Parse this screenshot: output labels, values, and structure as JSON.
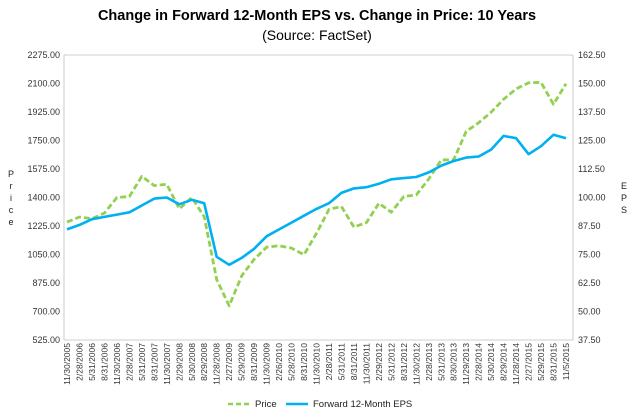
{
  "chart_data": {
    "type": "line",
    "title": "Change in Forward 12-Month EPS vs. Change in Price: 10 Years",
    "subtitle": "(Source: FactSet)",
    "ylabel_left": "Price",
    "ylabel_right": "EPS",
    "y_left": {
      "min": 525,
      "max": 2275,
      "ticks": [
        "525.00",
        "700.00",
        "875.00",
        "1050.00",
        "1225.00",
        "1400.00",
        "1575.00",
        "1750.00",
        "1925.00",
        "2100.00",
        "2275.00"
      ]
    },
    "y_right": {
      "min": 37.5,
      "max": 162.5,
      "ticks": [
        "37.50",
        "50.00",
        "62.50",
        "75.00",
        "87.50",
        "100.00",
        "112.50",
        "125.00",
        "137.50",
        "150.00",
        "162.50"
      ]
    },
    "x_labels": [
      "11/30/2005",
      "2/28/2006",
      "5/31/2006",
      "8/31/2006",
      "11/30/2006",
      "2/28/2007",
      "5/31/2007",
      "8/31/2007",
      "11/30/2007",
      "2/29/2008",
      "5/30/2008",
      "8/29/2008",
      "11/28/2008",
      "2/27/2009",
      "5/29/2009",
      "8/31/2009",
      "11/30/2009",
      "2/26/2010",
      "5/28/2010",
      "8/31/2010",
      "11/30/2010",
      "2/28/2011",
      "5/31/2011",
      "8/31/2011",
      "11/30/2011",
      "2/29/2012",
      "5/31/2012",
      "8/31/2012",
      "11/30/2012",
      "2/28/2013",
      "5/31/2013",
      "8/30/2013",
      "11/29/2013",
      "2/28/2014",
      "5/30/2014",
      "8/29/2014",
      "11/28/2014",
      "2/27/2015",
      "5/29/2015",
      "8/31/2015",
      "11/5/2015"
    ],
    "series": [
      {
        "name": "Price",
        "axis": "left",
        "color": "#92d050",
        "style": "dashed",
        "values": [
          1249,
          1280,
          1270,
          1304,
          1400,
          1406,
          1530,
          1473,
          1481,
          1330,
          1400,
          1282,
          896,
          735,
          919,
          1020,
          1095,
          1104,
          1089,
          1049,
          1180,
          1327,
          1345,
          1218,
          1246,
          1365,
          1310,
          1406,
          1416,
          1514,
          1630,
          1632,
          1806,
          1859,
          1924,
          2003,
          2067,
          2104,
          2107,
          1972,
          2099
        ]
      },
      {
        "name": "Forward 12-Month EPS",
        "axis": "right",
        "color": "#00b0f0",
        "style": "solid",
        "values": [
          86,
          88,
          90.5,
          91.5,
          92.5,
          93.5,
          96.5,
          99.5,
          100,
          97,
          99,
          97.5,
          74,
          70.5,
          73.5,
          77.5,
          83,
          86,
          89,
          92,
          95,
          97.5,
          102,
          104,
          104.5,
          106,
          108,
          108.5,
          109,
          111,
          114,
          116,
          117.5,
          118,
          121,
          127,
          126,
          119,
          122.5,
          127.5,
          126
        ]
      }
    ],
    "legend": {
      "position": "bottom",
      "entries": [
        "Price",
        "Forward 12-Month EPS"
      ]
    },
    "grid": false
  }
}
